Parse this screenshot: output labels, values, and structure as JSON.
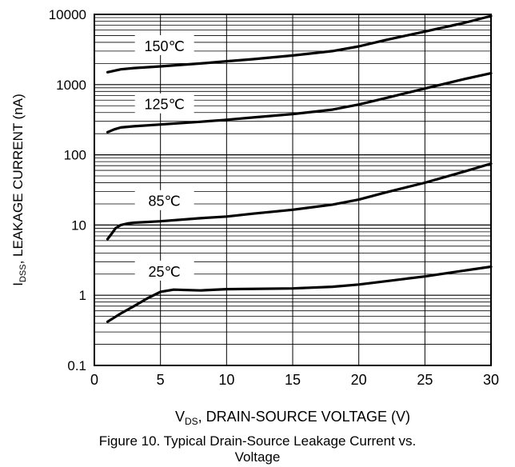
{
  "chart_data": {
    "type": "line",
    "y_scale": "log",
    "grid": true,
    "xlim": [
      0,
      30
    ],
    "ylim": [
      0.1,
      10000
    ],
    "x_ticks": [
      "0",
      "5",
      "10",
      "15",
      "20",
      "25",
      "30"
    ],
    "y_ticks": [
      "0.1",
      "1",
      "10",
      "100",
      "1000",
      "10000"
    ],
    "xlabel": {
      "main": "V",
      "sub": "DS",
      "rest": ", DRAIN-SOURCE VOLTAGE (V)"
    },
    "ylabel": {
      "main": "I",
      "sub": "DSS",
      "rest": ", LEAKAGE CURRENT (nA)"
    },
    "series": [
      {
        "name": "150℃",
        "label_x": 5.0,
        "x": [
          1,
          2,
          3,
          5,
          8,
          10,
          12,
          15,
          18,
          20,
          22,
          25,
          28,
          30
        ],
        "y": [
          1500,
          1650,
          1720,
          1820,
          2000,
          2150,
          2300,
          2600,
          3000,
          3500,
          4300,
          5700,
          7600,
          9500
        ]
      },
      {
        "name": "125℃",
        "label_x": 5.0,
        "x": [
          1,
          1.5,
          2,
          3,
          5,
          8,
          10,
          12,
          15,
          18,
          20,
          22,
          25,
          28,
          30
        ],
        "y": [
          210,
          230,
          245,
          255,
          270,
          295,
          315,
          340,
          380,
          440,
          520,
          640,
          880,
          1200,
          1450
        ]
      },
      {
        "name": "85℃",
        "label_x": 5.0,
        "x": [
          1,
          1.3,
          1.6,
          2,
          2.5,
          3,
          5,
          8,
          10,
          12,
          15,
          18,
          20,
          22,
          25,
          28,
          30
        ],
        "y": [
          6.3,
          7.5,
          9.0,
          10.0,
          10.5,
          10.8,
          11.3,
          12.5,
          13.2,
          14.5,
          16.5,
          19.5,
          23,
          29,
          40,
          58,
          75
        ]
      },
      {
        "name": "25℃",
        "label_x": 5.0,
        "x": [
          1,
          2,
          3,
          4,
          5,
          6,
          8,
          10,
          15,
          18,
          20,
          25,
          28,
          30
        ],
        "y": [
          0.42,
          0.55,
          0.7,
          0.9,
          1.12,
          1.2,
          1.17,
          1.22,
          1.25,
          1.32,
          1.42,
          1.85,
          2.25,
          2.55
        ]
      }
    ]
  },
  "caption": [
    "Figure 10. Typical Drain-Source Leakage Current vs.",
    "Voltage"
  ]
}
